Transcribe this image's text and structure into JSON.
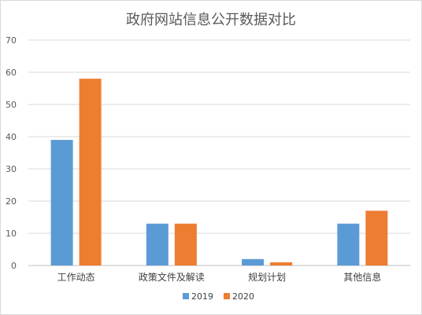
{
  "chart_data": {
    "type": "bar",
    "title": "政府网站信息公开数据对比",
    "categories": [
      "工作动态",
      "政策文件及解读",
      "规划计划",
      "其他信息"
    ],
    "series": [
      {
        "name": "2019",
        "values": [
          39,
          13,
          2,
          13
        ],
        "color": "#5b9bd5"
      },
      {
        "name": "2020",
        "values": [
          58,
          13,
          1,
          17
        ],
        "color": "#ed7d31"
      }
    ],
    "ylim": [
      0,
      70
    ],
    "yticks": [
      0,
      10,
      20,
      30,
      40,
      50,
      60,
      70
    ],
    "grid": true,
    "legend": "bottom"
  }
}
